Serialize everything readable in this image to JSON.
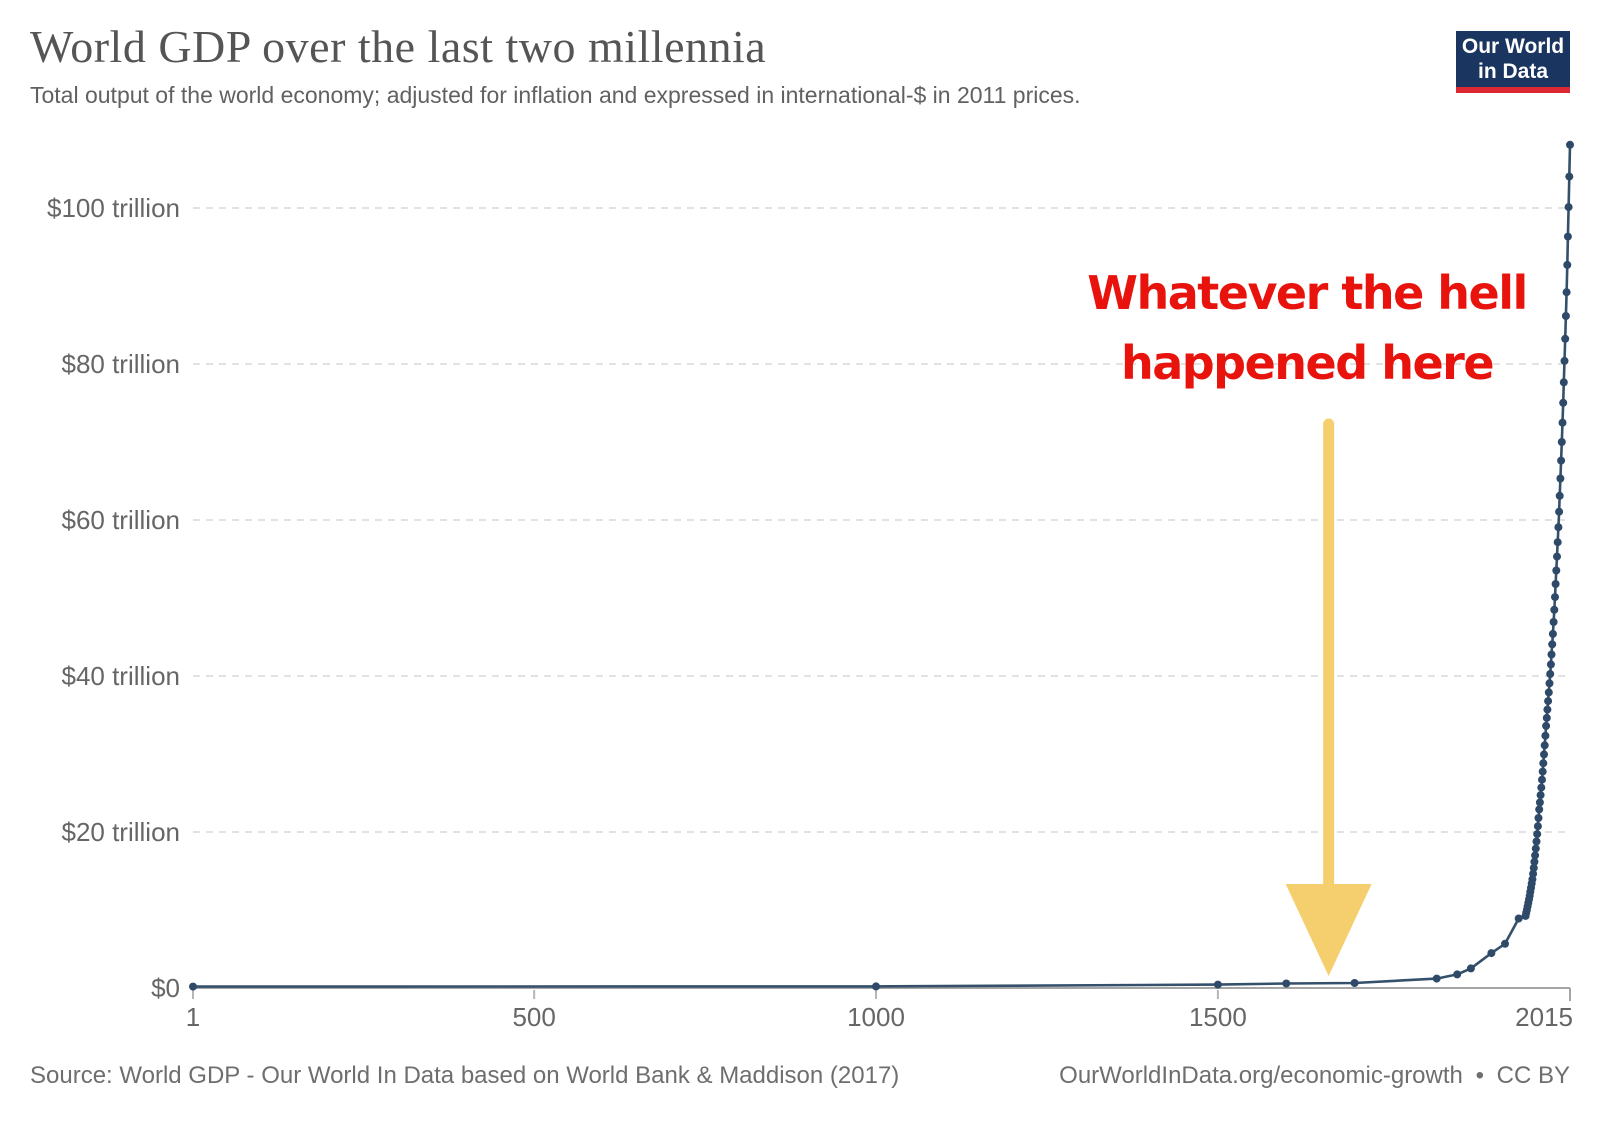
{
  "header": {
    "title": "World GDP over the last two millennia",
    "subtitle": "Total output of the world economy; adjusted for inflation and expressed in international-$ in 2011 prices.",
    "logo": {
      "line1": "Our World",
      "line2": "in Data",
      "bg_color": "#1a3560",
      "bar_color": "#dc2832"
    }
  },
  "annotation": {
    "line1": "Whatever the hell",
    "line2": "happened here",
    "text_color": "#e8130c",
    "arrow_color": "#f5cf6e",
    "arrow_target_year": 1662
  },
  "footer": {
    "source": "Source: World GDP - Our World In Data based on World Bank & Maddison (2017)",
    "link": "OurWorldInData.org/economic-growth",
    "separator": "•",
    "license": "CC BY"
  },
  "chart_data": {
    "type": "line",
    "title": "World GDP over the last two millennia",
    "xlabel": "",
    "ylabel": "",
    "units": "trillion international-$ (2011 prices)",
    "xlim": [
      1,
      2015
    ],
    "ylim": [
      0,
      110
    ],
    "grid": "dashed horizontal",
    "legend_position": "none",
    "line_color": "#35506b",
    "point_color": "#2e4a68",
    "axis_color": "#a5a5a5",
    "grid_color": "#d8d8d8",
    "tick_label_color": "#666666",
    "x_ticks": [
      {
        "year": 1,
        "label": "1"
      },
      {
        "year": 500,
        "label": "500"
      },
      {
        "year": 1000,
        "label": "1000"
      },
      {
        "year": 1500,
        "label": "1500"
      },
      {
        "year": 2015,
        "label": "2015"
      }
    ],
    "y_ticks": [
      {
        "value": 0,
        "label": "$0"
      },
      {
        "value": 20,
        "label": "$20 trillion"
      },
      {
        "value": 40,
        "label": "$40 trillion"
      },
      {
        "value": 60,
        "label": "$60 trillion"
      },
      {
        "value": 80,
        "label": "$80 trillion"
      },
      {
        "value": 100,
        "label": "$100 trillion"
      }
    ],
    "points": [
      [
        1,
        0.183
      ],
      [
        1000,
        0.21
      ],
      [
        1500,
        0.431
      ],
      [
        1600,
        0.575
      ],
      [
        1700,
        0.643
      ],
      [
        1820,
        1.2
      ],
      [
        1850,
        1.75
      ],
      [
        1870,
        2.51
      ],
      [
        1900,
        4.47
      ],
      [
        1920,
        5.67
      ],
      [
        1940,
        8.91
      ],
      [
        1950,
        9.25
      ],
      [
        1951,
        9.64
      ],
      [
        1952,
        10.04
      ],
      [
        1953,
        10.46
      ],
      [
        1954,
        10.9
      ],
      [
        1955,
        11.36
      ],
      [
        1956,
        11.83
      ],
      [
        1957,
        12.33
      ],
      [
        1958,
        12.85
      ],
      [
        1959,
        13.38
      ],
      [
        1960,
        13.94
      ],
      [
        1961,
        14.65
      ],
      [
        1962,
        15.4
      ],
      [
        1963,
        16.18
      ],
      [
        1964,
        17.0
      ],
      [
        1965,
        17.87
      ],
      [
        1966,
        18.78
      ],
      [
        1967,
        19.73
      ],
      [
        1968,
        20.74
      ],
      [
        1969,
        21.79
      ],
      [
        1970,
        22.9
      ],
      [
        1971,
        23.8
      ],
      [
        1972,
        24.73
      ],
      [
        1973,
        25.69
      ],
      [
        1974,
        26.7
      ],
      [
        1975,
        27.74
      ],
      [
        1976,
        28.82
      ],
      [
        1977,
        29.95
      ],
      [
        1978,
        31.12
      ],
      [
        1979,
        32.34
      ],
      [
        1980,
        33.6
      ],
      [
        1981,
        34.63
      ],
      [
        1982,
        35.69
      ],
      [
        1983,
        36.78
      ],
      [
        1984,
        37.9
      ],
      [
        1985,
        39.06
      ],
      [
        1986,
        40.26
      ],
      [
        1987,
        41.49
      ],
      [
        1988,
        42.76
      ],
      [
        1989,
        44.06
      ],
      [
        1990,
        45.4
      ],
      [
        1991,
        46.92
      ],
      [
        1992,
        48.49
      ],
      [
        1993,
        50.11
      ],
      [
        1994,
        51.79
      ],
      [
        1995,
        53.52
      ],
      [
        1996,
        55.31
      ],
      [
        1997,
        57.16
      ],
      [
        1998,
        59.08
      ],
      [
        1999,
        61.06
      ],
      [
        2000,
        63.1
      ],
      [
        2001,
        65.32
      ],
      [
        2002,
        67.62
      ],
      [
        2003,
        70.0
      ],
      [
        2004,
        72.47
      ],
      [
        2005,
        75.02
      ],
      [
        2006,
        77.66
      ],
      [
        2007,
        80.4
      ],
      [
        2008,
        83.23
      ],
      [
        2009,
        86.16
      ],
      [
        2010,
        89.2
      ],
      [
        2011,
        92.7
      ],
      [
        2012,
        96.33
      ],
      [
        2013,
        100.11
      ],
      [
        2014,
        104.03
      ],
      [
        2015,
        108.1
      ]
    ]
  }
}
